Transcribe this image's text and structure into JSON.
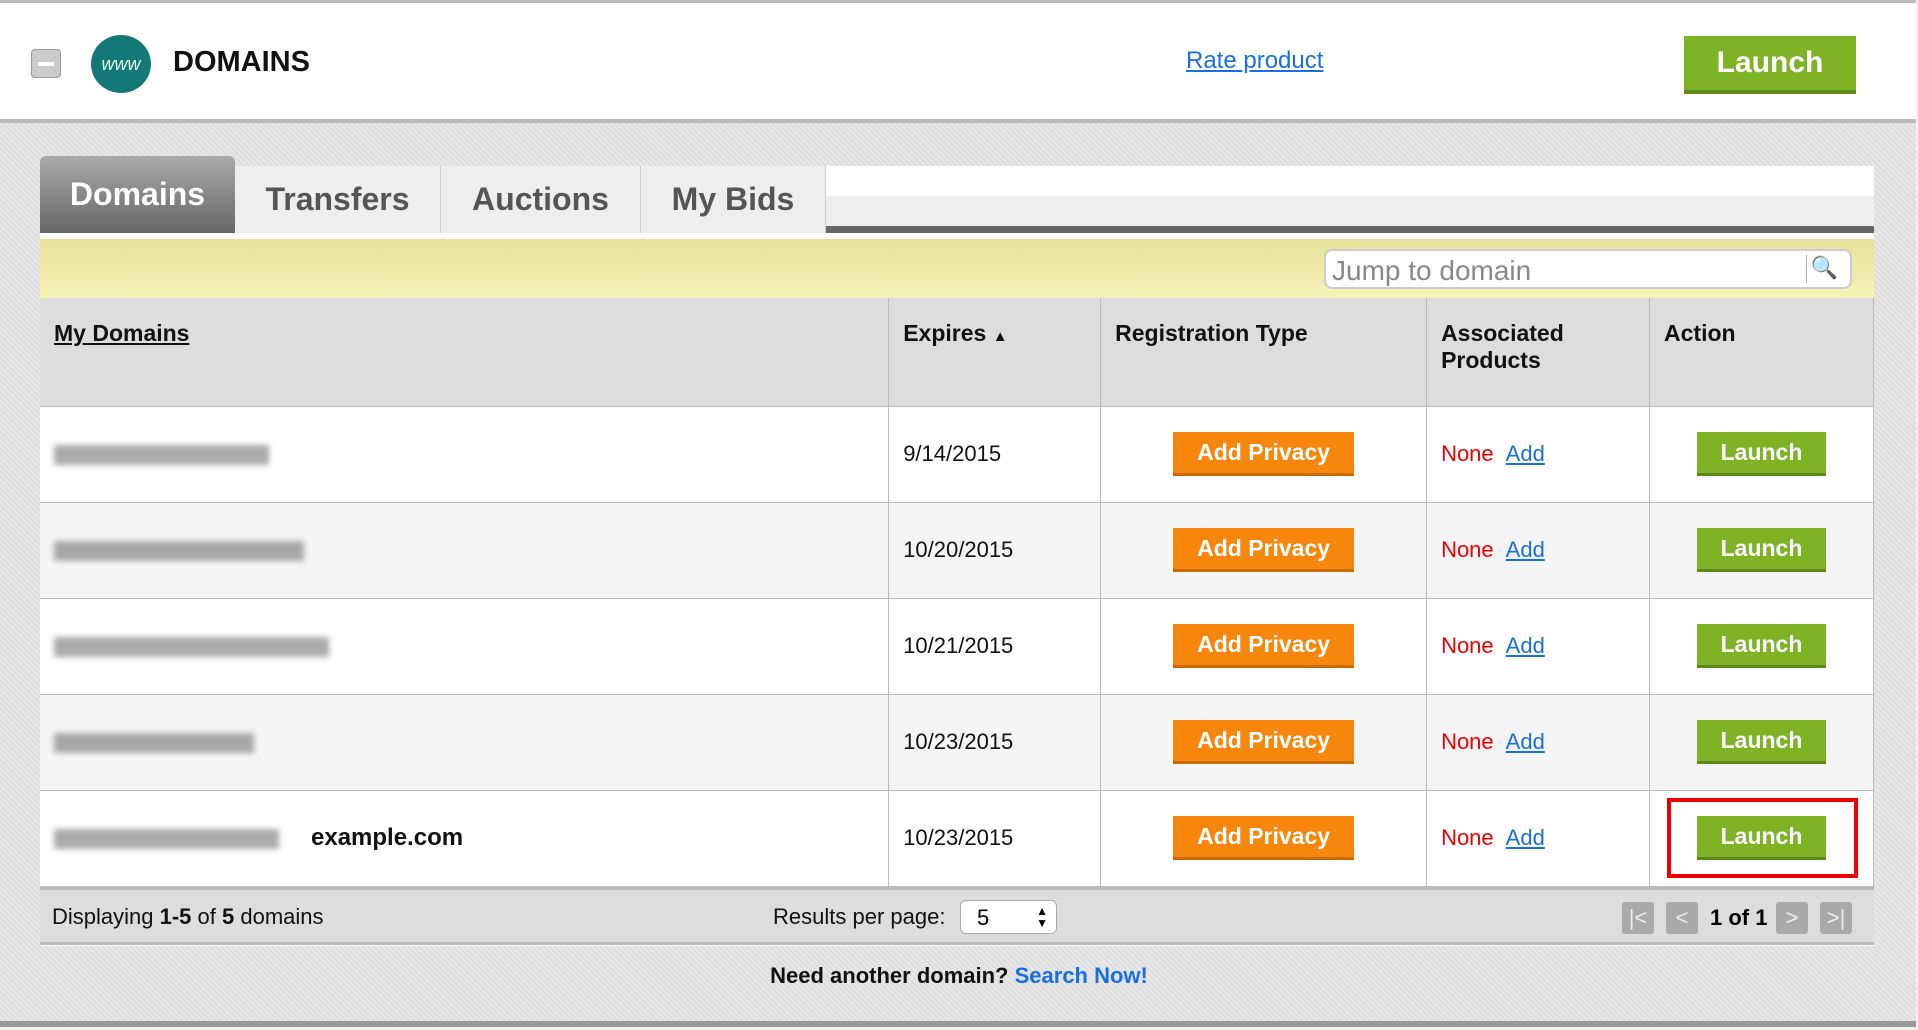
{
  "header": {
    "title": "DOMAINS",
    "logo_text": "www",
    "rate_link": "Rate product",
    "launch": "Launch"
  },
  "tabs": [
    {
      "label": "Domains",
      "active": true
    },
    {
      "label": "Transfers"
    },
    {
      "label": "Auctions"
    },
    {
      "label": "My Bids"
    }
  ],
  "search": {
    "placeholder": "Jump to domain",
    "icon": "search-icon"
  },
  "table": {
    "columns": [
      "My Domains",
      "Expires",
      "Registration Type",
      "Associated Products",
      "Action"
    ],
    "sort_indicator": "▲",
    "rows": [
      {
        "domain_extra": "",
        "expires": "9/14/2015",
        "registration": "Add Privacy",
        "products": "None",
        "add": "Add",
        "action": "Launch"
      },
      {
        "domain_extra": "",
        "expires": "10/20/2015",
        "registration": "Add Privacy",
        "products": "None",
        "add": "Add",
        "action": "Launch"
      },
      {
        "domain_extra": "",
        "expires": "10/21/2015",
        "registration": "Add Privacy",
        "products": "None",
        "add": "Add",
        "action": "Launch"
      },
      {
        "domain_extra": "",
        "expires": "10/23/2015",
        "registration": "Add Privacy",
        "products": "None",
        "add": "Add",
        "action": "Launch"
      },
      {
        "domain_extra": "example.com",
        "expires": "10/23/2015",
        "registration": "Add Privacy",
        "products": "None",
        "add": "Add",
        "action": "Launch",
        "highlighted": true
      }
    ]
  },
  "footer": {
    "displaying_prefix": "Displaying ",
    "range": "1-5",
    "of": " of ",
    "total": "5",
    "suffix": " domains",
    "results_label": "Results per page:",
    "per_page": "5",
    "page": "1 of 1"
  },
  "cta": {
    "text": "Need another domain?",
    "link": "Search Now!"
  },
  "colors": {
    "launch": "#7db324",
    "privacy": "#f7870c",
    "link": "#1a6fe0",
    "highlight": "#ee0000"
  }
}
